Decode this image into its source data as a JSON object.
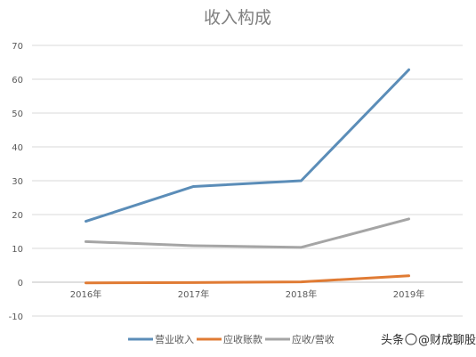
{
  "chart_data": {
    "type": "line",
    "title": "收入构成",
    "categories": [
      "2016年",
      "2017年",
      "2018年",
      "2019年"
    ],
    "ylim": [
      -10,
      70
    ],
    "yticks": [
      -10,
      0,
      10,
      20,
      30,
      40,
      50,
      60,
      70
    ],
    "grid": true,
    "legend": "bottom",
    "series": [
      {
        "name": "营业收入",
        "values": [
          18,
          28.3,
          30,
          62.8
        ],
        "color": "#5b8db8"
      },
      {
        "name": "应收账款",
        "values": [
          -0.2,
          -0.1,
          0.1,
          1.9
        ],
        "color": "#e07b34"
      },
      {
        "name": "应收/营收",
        "values": [
          12,
          10.8,
          10.3,
          18.7
        ],
        "color": "#a5a5a5"
      }
    ]
  },
  "watermark": {
    "text1": "头条",
    "text2": "@财成聊股"
  }
}
